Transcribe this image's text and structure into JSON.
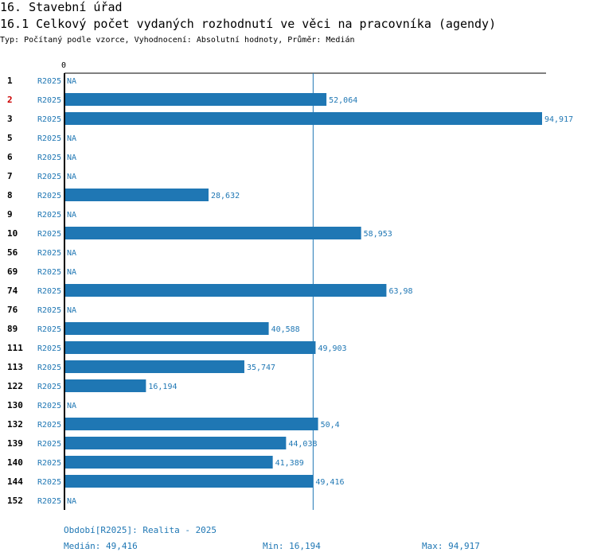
{
  "header": {
    "title": "16. Stavební úřad",
    "subtitle": "16.1 Celkový počet vydaných rozhodnutí ve věci na pracovníka (agendy)",
    "type_line": "Typ: Počítaný podle vzorce, Vyhodnocení: Absolutní hodnoty, Průměr: Medián"
  },
  "colors": {
    "bar": "#1f77b4",
    "highlight_label": "#cc0000",
    "axis": "#000000"
  },
  "chart_data": {
    "type": "bar",
    "orientation": "horizontal",
    "x_tick_label": "0",
    "xlim": [
      0,
      94.917
    ],
    "series_label": "R2025",
    "highlighted_category": "2",
    "median": 49.416,
    "categories": [
      "1",
      "2",
      "3",
      "5",
      "6",
      "7",
      "8",
      "9",
      "10",
      "56",
      "69",
      "74",
      "76",
      "89",
      "111",
      "113",
      "122",
      "130",
      "132",
      "139",
      "140",
      "144",
      "152"
    ],
    "values": [
      null,
      52.064,
      94.917,
      null,
      null,
      null,
      28.632,
      null,
      58.953,
      null,
      null,
      63.98,
      null,
      40.588,
      49.903,
      35.747,
      16.194,
      null,
      50.4,
      44.038,
      41.389,
      49.416,
      null
    ],
    "value_labels": [
      "NA",
      "52,064",
      "94,917",
      "NA",
      "NA",
      "NA",
      "28,632",
      "NA",
      "58,953",
      "NA",
      "NA",
      "63,98",
      "NA",
      "40,588",
      "49,903",
      "35,747",
      "16,194",
      "NA",
      "50,4",
      "44,038",
      "41,389",
      "49,416",
      "NA"
    ]
  },
  "footer": {
    "period": "Období[R2025]: Realita - 2025",
    "median": "Medián: 49,416",
    "min": "Min: 16,194",
    "max": "Max: 94,917"
  }
}
